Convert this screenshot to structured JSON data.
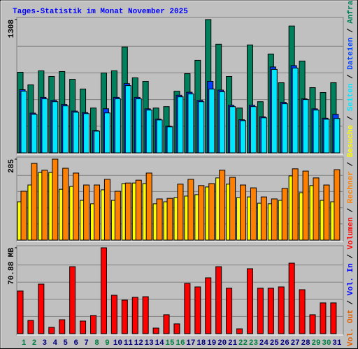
{
  "chart_data": {
    "type": "bar",
    "title": "Tages-Statistik im Monat November 2025",
    "categories": [
      "1",
      "2",
      "3",
      "4",
      "5",
      "6",
      "7",
      "8",
      "9",
      "10",
      "11",
      "12",
      "13",
      "14",
      "15",
      "16",
      "17",
      "18",
      "19",
      "20",
      "21",
      "22",
      "23",
      "24",
      "25",
      "26",
      "27",
      "28",
      "29",
      "30",
      "31"
    ],
    "label_colors": [
      "#008040",
      "#008040",
      "#000080",
      "#000080",
      "#000080",
      "#000080",
      "#000080",
      "#008040",
      "#008040",
      "#000080",
      "#000080",
      "#000080",
      "#000080",
      "#000080",
      "#008040",
      "#008040",
      "#000080",
      "#000080",
      "#000080",
      "#000080",
      "#000080",
      "#008040",
      "#008040",
      "#000080",
      "#000080",
      "#000080",
      "#000080",
      "#000080",
      "#008040",
      "#008040",
      "#000080"
    ],
    "grid": true,
    "legend_separator": " / ",
    "panels": [
      {
        "ylim": [
          0,
          1308
        ],
        "yticks": [
          1308
        ],
        "series": [
          {
            "name": "Anfragen",
            "color": "#00805c",
            "values": [
              791,
              667,
              805,
              750,
              798,
              722,
              626,
              440,
              784,
              805,
              1039,
              736,
              702,
              440,
              454,
              605,
              777,
              908,
              1308,
              1066,
              750,
              440,
              1059,
              502,
              970,
              688,
              1245,
              901,
              640,
              592,
              688
            ]
          },
          {
            "name": "Dateien",
            "color": "#0040ff",
            "values": [
              620,
              390,
              545,
              515,
              475,
              410,
              395,
              220,
              433,
              545,
              680,
              545,
              432,
              332,
              262,
              566,
              595,
              516,
              702,
              616,
              467,
              325,
              467,
              354,
              843,
              496,
              856,
              530,
              432,
              340,
              378
            ]
          },
          {
            "name": "Seiten",
            "color": "#00e8ff",
            "values": [
              605,
              378,
              530,
              502,
              461,
              399,
              385,
              213,
              392,
              530,
              660,
              530,
              420,
              323,
              255,
              550,
              578,
              502,
              626,
              599,
              454,
              316,
              454,
              344,
              819,
              482,
              832,
              523,
              420,
              330,
              337
            ]
          }
        ]
      },
      {
        "ylim": [
          0,
          285
        ],
        "yticks": [
          285
        ],
        "series": [
          {
            "name": "Besuche",
            "color": "#ffff00",
            "values": [
              135,
              194,
              238,
              238,
              179,
              189,
              140,
              128,
              177,
              140,
              199,
              201,
              199,
              128,
              135,
              150,
              155,
              160,
              187,
              219,
              197,
              150,
              152,
              130,
              128,
              140,
              226,
              167,
              192,
              140,
              135
            ]
          },
          {
            "name": "Rechner",
            "color": "#ff8000",
            "values": [
              172,
              270,
              246,
              285,
              253,
              236,
              194,
              194,
              214,
              172,
              201,
              211,
              236,
              145,
              147,
              197,
              214,
              192,
              199,
              246,
              221,
              194,
              184,
              152,
              145,
              182,
              251,
              243,
              219,
              194,
              248
            ]
          }
        ]
      },
      {
        "ylim": [
          0,
          70.88
        ],
        "yticks": [
          {
            "value": 70.88,
            "label": "70.88 MB"
          }
        ],
        "legend_only": [
          {
            "name": "Vol. In",
            "color": "#0000ff"
          },
          {
            "name": "Vol. Out",
            "color": "#e06000"
          }
        ],
        "series": [
          {
            "name": "Volumen",
            "color": "#ff0000",
            "values": [
              35.2,
              10.9,
              40.9,
              5.2,
              11.5,
              55.3,
              10.4,
              15.0,
              70.88,
              31.7,
              27.7,
              30.0,
              30.5,
              4.6,
              15.6,
              8.1,
              41.5,
              38.6,
              46.1,
              55.3,
              37.5,
              4.0,
              53.6,
              37.5,
              37.5,
              38.6,
              58.2,
              36.3,
              15.6,
              25.4,
              25.4
            ]
          }
        ]
      }
    ]
  }
}
